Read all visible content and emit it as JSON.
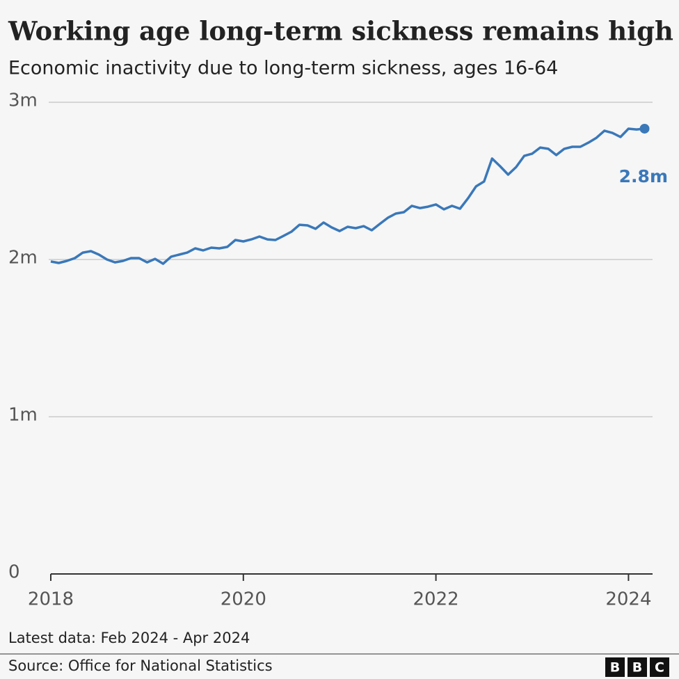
{
  "chart_data": {
    "type": "line",
    "title": "Working age long-term sickness remains high",
    "subtitle": "Economic inactivity due to long-term sickness, ages 16-64",
    "x": [
      2018,
      2018.083,
      2018.167,
      2018.25,
      2018.333,
      2018.417,
      2018.5,
      2018.583,
      2018.667,
      2018.75,
      2018.833,
      2018.917,
      2019,
      2019.083,
      2019.167,
      2019.25,
      2019.333,
      2019.417,
      2019.5,
      2019.583,
      2019.667,
      2019.75,
      2019.833,
      2019.917,
      2020,
      2020.083,
      2020.167,
      2020.25,
      2020.333,
      2020.417,
      2020.5,
      2020.583,
      2020.667,
      2020.75,
      2020.833,
      2020.917,
      2021,
      2021.083,
      2021.167,
      2021.25,
      2021.333,
      2021.417,
      2021.5,
      2021.583,
      2021.667,
      2021.75,
      2021.833,
      2021.917,
      2022,
      2022.083,
      2022.167,
      2022.25,
      2022.333,
      2022.417,
      2022.5,
      2022.583,
      2022.667,
      2022.75,
      2022.833,
      2022.917,
      2023,
      2023.083,
      2023.167,
      2023.25,
      2023.333,
      2023.417,
      2023.5,
      2023.583,
      2023.667,
      2023.75,
      2023.833,
      2023.917,
      2024,
      2024.083,
      2024.167
    ],
    "series": [
      {
        "name": "Economically inactive due to long-term sickness",
        "color": "#3a78b9",
        "values": [
          1.987,
          1.978,
          1.991,
          2.009,
          2.044,
          2.053,
          2.031,
          2.0,
          1.982,
          1.991,
          2.009,
          2.009,
          1.982,
          2.004,
          1.973,
          2.018,
          2.031,
          2.044,
          2.071,
          2.058,
          2.075,
          2.071,
          2.08,
          2.124,
          2.115,
          2.128,
          2.146,
          2.128,
          2.124,
          2.15,
          2.177,
          2.221,
          2.217,
          2.195,
          2.235,
          2.204,
          2.181,
          2.208,
          2.199,
          2.212,
          2.186,
          2.226,
          2.265,
          2.292,
          2.301,
          2.341,
          2.327,
          2.336,
          2.35,
          2.319,
          2.341,
          2.323,
          2.389,
          2.465,
          2.496,
          2.642,
          2.593,
          2.54,
          2.588,
          2.659,
          2.673,
          2.712,
          2.704,
          2.664,
          2.704,
          2.717,
          2.717,
          2.743,
          2.774,
          2.819,
          2.805,
          2.779,
          2.832,
          2.827,
          2.832
        ]
      }
    ],
    "end_label": "2.8m",
    "xlim": [
      2018,
      2024.25
    ],
    "xticks": [
      2018,
      2020,
      2022,
      2024
    ],
    "ylim": [
      0,
      3
    ],
    "yticks": [
      0,
      {
        "value": 1,
        "label": "1m"
      },
      {
        "value": 2,
        "label": "2m"
      },
      {
        "value": 3,
        "label": "3m"
      }
    ],
    "grid": true,
    "note": "Latest data: Feb 2024 - Apr 2024",
    "source": "Source: Office for National Statistics",
    "logo": [
      "B",
      "B",
      "C"
    ]
  }
}
